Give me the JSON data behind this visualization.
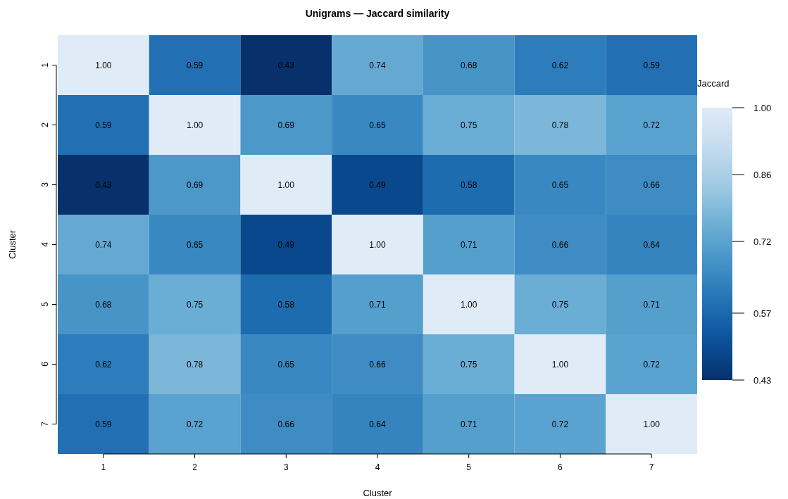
{
  "chart_data": {
    "type": "heatmap",
    "title": "Unigrams — Jaccard similarity",
    "xlabel": "Cluster",
    "ylabel": "Cluster",
    "clabel": "Jaccard",
    "categories": [
      "1",
      "2",
      "3",
      "4",
      "5",
      "6",
      "7"
    ],
    "y_categories": [
      "1",
      "2",
      "3",
      "4",
      "5",
      "6",
      "7"
    ],
    "cells": [
      [
        1.0,
        0.59,
        0.43,
        0.74,
        0.68,
        0.62,
        0.59
      ],
      [
        0.59,
        1.0,
        0.69,
        0.65,
        0.75,
        0.78,
        0.72
      ],
      [
        0.43,
        0.69,
        1.0,
        0.49,
        0.58,
        0.65,
        0.66
      ],
      [
        0.74,
        0.65,
        0.49,
        1.0,
        0.71,
        0.66,
        0.64
      ],
      [
        0.68,
        0.75,
        0.58,
        0.71,
        1.0,
        0.75,
        0.71
      ],
      [
        0.62,
        0.78,
        0.65,
        0.66,
        0.75,
        1.0,
        0.72
      ],
      [
        0.59,
        0.72,
        0.66,
        0.64,
        0.71,
        0.72,
        1.0
      ]
    ],
    "cell_labels": [
      [
        "1.00",
        "0.59",
        "0.43",
        "0.74",
        "0.68",
        "0.62",
        "0.59"
      ],
      [
        "0.59",
        "1.00",
        "0.69",
        "0.65",
        "0.75",
        "0.78",
        "0.72"
      ],
      [
        "0.43",
        "0.69",
        "1.00",
        "0.49",
        "0.58",
        "0.65",
        "0.66"
      ],
      [
        "0.74",
        "0.65",
        "0.49",
        "1.00",
        "0.71",
        "0.66",
        "0.64"
      ],
      [
        "0.68",
        "0.75",
        "0.58",
        "0.71",
        "1.00",
        "0.75",
        "0.71"
      ],
      [
        "0.62",
        "0.78",
        "0.65",
        "0.66",
        "0.75",
        "1.00",
        "0.72"
      ],
      [
        "0.59",
        "0.72",
        "0.66",
        "0.64",
        "0.71",
        "0.72",
        "1.00"
      ]
    ],
    "clim": [
      0.43,
      1.0
    ],
    "cticks": [
      {
        "value": 1.0,
        "label": "1.00"
      },
      {
        "value": 0.86,
        "label": "0.86"
      },
      {
        "value": 0.72,
        "label": "0.72"
      },
      {
        "value": 0.57,
        "label": "0.57"
      },
      {
        "value": 0.43,
        "label": "0.43"
      }
    ]
  }
}
